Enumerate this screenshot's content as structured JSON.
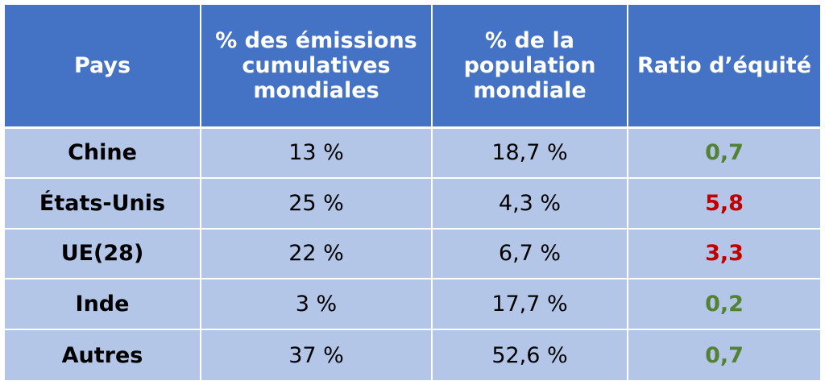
{
  "chart_data": {
    "type": "table",
    "columns": [
      "Pays",
      "% des émissions cumulatives mondiales",
      "% de la population mondiale",
      "Ratio d’équité"
    ],
    "rows": [
      {
        "country": "Chine",
        "emissions": "13 %",
        "population": "18,7 %",
        "ratio": "0,7",
        "ratio_color": "#548235"
      },
      {
        "country": "États-Unis",
        "emissions": "25 %",
        "population": "4,3 %",
        "ratio": "5,8",
        "ratio_color": "#c00000"
      },
      {
        "country": "UE(28)",
        "emissions": "22 %",
        "population": "6,7 %",
        "ratio": "3,3",
        "ratio_color": "#c00000"
      },
      {
        "country": "Inde",
        "emissions": "3 %",
        "population": "17,7 %",
        "ratio": "0,2",
        "ratio_color": "#548235"
      },
      {
        "country": "Autres",
        "emissions": "37 %",
        "population": "52,6 %",
        "ratio": "0,7",
        "ratio_color": "#548235"
      }
    ]
  },
  "colors": {
    "header_bg": "#4472c4",
    "row_bg": "#b4c6e7",
    "header_text": "#ffffff",
    "good": "#548235",
    "bad": "#c00000"
  }
}
